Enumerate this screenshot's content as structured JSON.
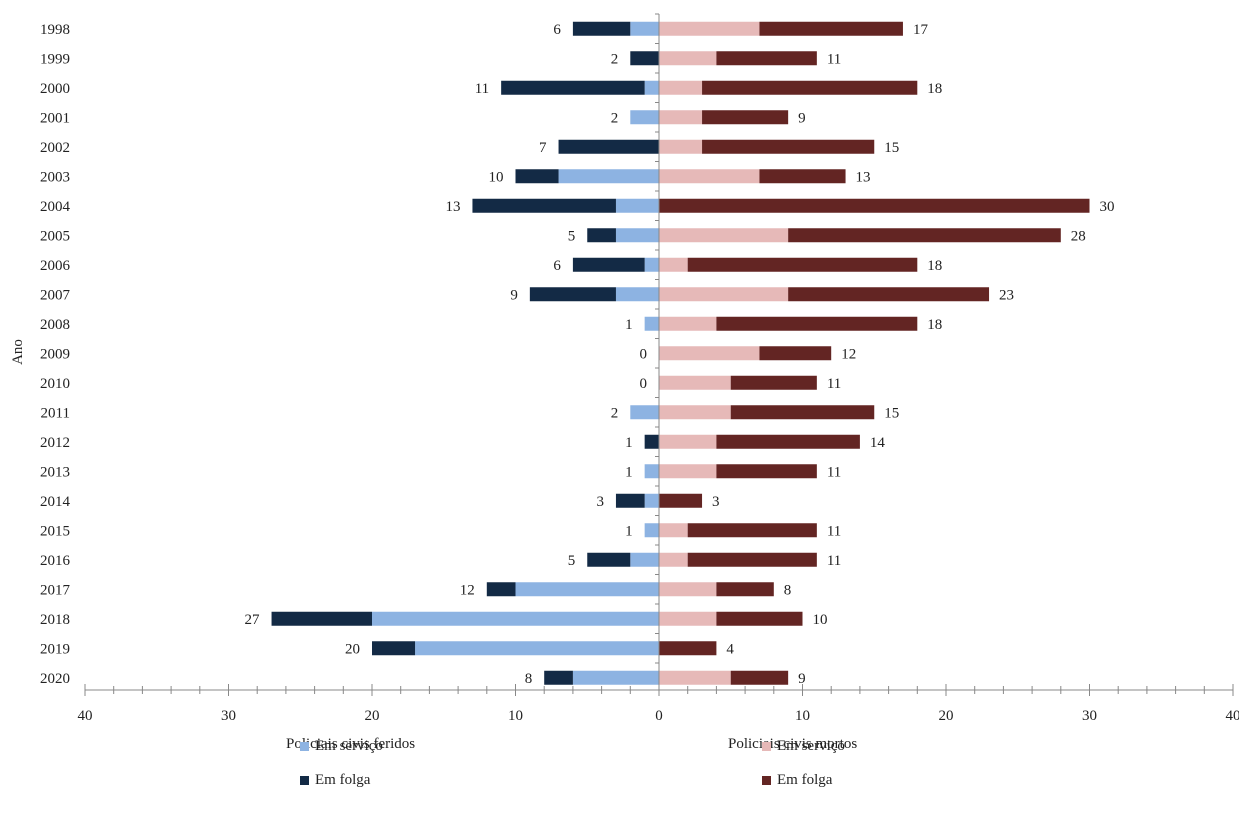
{
  "chart_data": {
    "type": "bar",
    "orientation": "horizontal",
    "layout": "diverging-stacked",
    "ylabel": "Ano",
    "categories": [
      "1998",
      "1999",
      "2000",
      "2001",
      "2002",
      "2003",
      "2004",
      "2005",
      "2006",
      "2007",
      "2008",
      "2009",
      "2010",
      "2011",
      "2012",
      "2013",
      "2014",
      "2015",
      "2016",
      "2017",
      "2018",
      "2019",
      "2020"
    ],
    "xlim": [
      -40,
      40
    ],
    "x_ticks": [
      "40",
      "30",
      "20",
      "10",
      "0",
      "10",
      "20",
      "30",
      "40"
    ],
    "grid": false,
    "left_panel": {
      "label": "Policiais civis feridos",
      "series": [
        {
          "name": "Em serviço",
          "color": "#8db3e2",
          "values": [
            2,
            0,
            1,
            2,
            0,
            7,
            3,
            3,
            1,
            3,
            1,
            0,
            0,
            2,
            0,
            1,
            1,
            1,
            2,
            10,
            20,
            17,
            6
          ]
        },
        {
          "name": "Em folga",
          "color": "#132a45",
          "values": [
            4,
            2,
            10,
            0,
            7,
            3,
            10,
            2,
            5,
            6,
            0,
            0,
            0,
            0,
            1,
            0,
            2,
            0,
            3,
            2,
            7,
            3,
            2
          ]
        }
      ],
      "totals": [
        6,
        2,
        11,
        2,
        7,
        10,
        13,
        5,
        6,
        9,
        1,
        0,
        0,
        2,
        1,
        1,
        3,
        1,
        5,
        12,
        27,
        20,
        8
      ]
    },
    "right_panel": {
      "label": "Policiais civis mortos",
      "series": [
        {
          "name": "Em serviço",
          "color": "#e6b9b8",
          "values": [
            7,
            4,
            3,
            3,
            3,
            7,
            0,
            9,
            2,
            9,
            4,
            7,
            5,
            5,
            4,
            4,
            0,
            2,
            2,
            4,
            4,
            0,
            5
          ]
        },
        {
          "name": "Em folga",
          "color": "#632523",
          "values": [
            10,
            7,
            15,
            6,
            12,
            6,
            30,
            19,
            16,
            14,
            14,
            5,
            6,
            10,
            10,
            7,
            3,
            9,
            9,
            4,
            6,
            4,
            4
          ]
        }
      ],
      "totals": [
        17,
        11,
        18,
        9,
        15,
        13,
        30,
        28,
        18,
        23,
        18,
        12,
        11,
        15,
        14,
        11,
        3,
        11,
        11,
        8,
        10,
        4,
        9
      ]
    },
    "legend_position": "bottom"
  }
}
